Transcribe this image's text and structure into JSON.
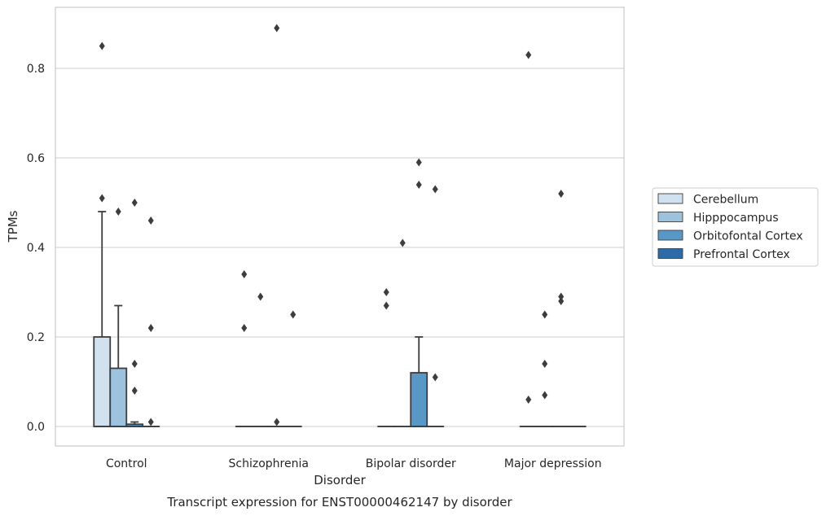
{
  "chart_data": {
    "type": "boxplot",
    "title": "",
    "caption": "Transcript expression for ENST00000462147 by disorder",
    "xlabel": "Disorder",
    "ylabel": "TPMs",
    "ylim": [
      -0.043,
      0.937
    ],
    "yticks": [
      "0.0",
      "0.2",
      "0.4",
      "0.6",
      "0.8"
    ],
    "categories": [
      "Control",
      "Schizophrenia",
      "Bipolar disorder",
      "Major depression"
    ],
    "grid": "horizontal",
    "legend_position": "right",
    "series": [
      {
        "name": "Cerebellum",
        "color": "#d0e1f0",
        "boxes": [
          {
            "q1": 0,
            "median": 0,
            "q3": 0.2,
            "whisker_low": 0,
            "whisker_high": 0.48,
            "outliers": [
              0.51,
              0.85
            ]
          },
          {
            "q1": 0,
            "median": 0,
            "q3": 0,
            "whisker_low": 0,
            "whisker_high": 0,
            "outliers": [
              0.22,
              0.34
            ]
          },
          {
            "q1": 0,
            "median": 0,
            "q3": 0,
            "whisker_low": 0,
            "whisker_high": 0,
            "outliers": [
              0.27,
              0.3
            ]
          },
          {
            "q1": 0,
            "median": 0,
            "q3": 0,
            "whisker_low": 0,
            "whisker_high": 0,
            "outliers": [
              0.06,
              0.83
            ]
          }
        ]
      },
      {
        "name": "Hipppocampus",
        "color": "#9dc2dd",
        "boxes": [
          {
            "q1": 0,
            "median": 0,
            "q3": 0.13,
            "whisker_low": 0,
            "whisker_high": 0.27,
            "outliers": [
              0.48
            ]
          },
          {
            "q1": 0,
            "median": 0,
            "q3": 0,
            "whisker_low": 0,
            "whisker_high": 0,
            "outliers": [
              0.29
            ]
          },
          {
            "q1": 0,
            "median": 0,
            "q3": 0,
            "whisker_low": 0,
            "whisker_high": 0,
            "outliers": [
              0.41
            ]
          },
          {
            "q1": 0,
            "median": 0,
            "q3": 0,
            "whisker_low": 0,
            "whisker_high": 0,
            "outliers": [
              0.07,
              0.14,
              0.25
            ]
          }
        ]
      },
      {
        "name": "Orbitofontal Cortex",
        "color": "#5898c6",
        "boxes": [
          {
            "q1": 0,
            "median": 0,
            "q3": 0.005,
            "whisker_low": 0,
            "whisker_high": 0.01,
            "outliers": [
              0.08,
              0.14,
              0.5
            ]
          },
          {
            "q1": 0,
            "median": 0,
            "q3": 0,
            "whisker_low": 0,
            "whisker_high": 0,
            "outliers": [
              0.01,
              0.89
            ]
          },
          {
            "q1": 0,
            "median": 0,
            "q3": 0.12,
            "whisker_low": 0,
            "whisker_high": 0.2,
            "outliers": [
              0.54,
              0.59
            ]
          },
          {
            "q1": 0,
            "median": 0,
            "q3": 0,
            "whisker_low": 0,
            "whisker_high": 0,
            "outliers": [
              0.28,
              0.29,
              0.52
            ]
          }
        ]
      },
      {
        "name": "Prefrontal Cortex",
        "color": "#2c6ba8",
        "boxes": [
          {
            "q1": 0,
            "median": 0,
            "q3": 0,
            "whisker_low": 0,
            "whisker_high": 0,
            "outliers": [
              0.01,
              0.22,
              0.46
            ]
          },
          {
            "q1": 0,
            "median": 0,
            "q3": 0,
            "whisker_low": 0,
            "whisker_high": 0,
            "outliers": [
              0.25
            ]
          },
          {
            "q1": 0,
            "median": 0,
            "q3": 0,
            "whisker_low": 0,
            "whisker_high": 0,
            "outliers": [
              0.11,
              0.53
            ]
          },
          {
            "q1": 0,
            "median": 0,
            "q3": 0,
            "whisker_low": 0,
            "whisker_high": 0,
            "outliers": []
          }
        ]
      }
    ]
  }
}
